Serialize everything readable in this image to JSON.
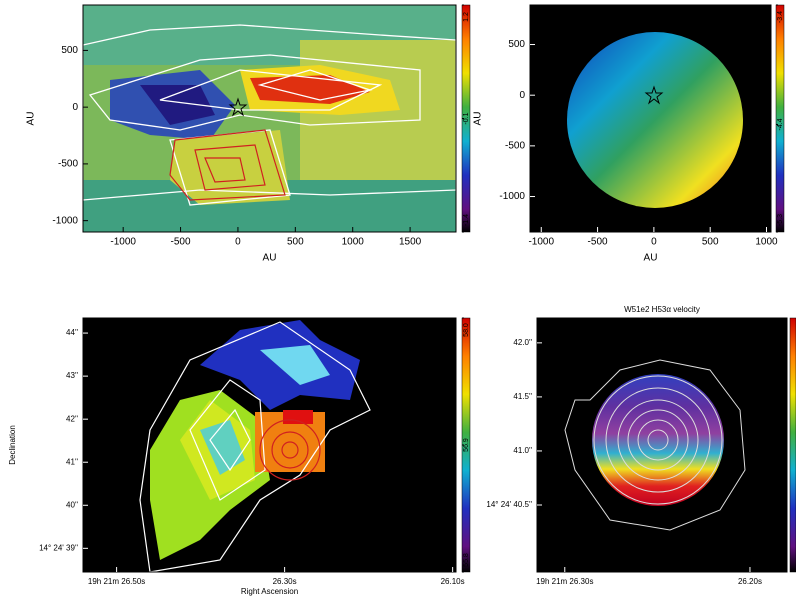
{
  "chart_data": [
    {
      "type": "image",
      "xlabel": "AU",
      "ylabel": "AU",
      "xlim": [
        -1350,
        1900
      ],
      "ylim": [
        -1100,
        900
      ],
      "xticks": [
        -1000,
        -500,
        0,
        500,
        1000,
        1500
      ],
      "yticks": [
        -1000,
        -500,
        0,
        500
      ],
      "zlim": [
        -1.4,
        1.2
      ],
      "zticks": [
        -1.4,
        -0.1,
        1.2
      ]
    },
    {
      "type": "image",
      "xlabel": "AU",
      "ylabel": "AU",
      "xlim": [
        -1100,
        1040
      ],
      "ylim": [
        -1350,
        890
      ],
      "xticks": [
        -1000,
        -500,
        0,
        500,
        1000
      ],
      "yticks": [
        -1000,
        -500,
        0,
        500
      ],
      "zlim": [
        -5.3,
        -3.4
      ],
      "zticks": [
        -5.3,
        -4.4,
        -3.4
      ]
    },
    {
      "type": "image",
      "xlabel": "Right Ascension",
      "ylabel": "Declination",
      "xlim": [
        26.54,
        26.096
      ],
      "ylim": [
        38.45,
        44.35
      ],
      "xticks": [
        {
          "value": 26.5,
          "label": "19h 21m 26.50s"
        },
        {
          "value": 26.3,
          "label": "26.30s"
        },
        {
          "value": 26.1,
          "label": "26.10s"
        }
      ],
      "yticks": [
        {
          "value": 39,
          "label": "14° 24' 39''"
        },
        {
          "value": 40,
          "label": "40''"
        },
        {
          "value": 41,
          "label": "41''"
        },
        {
          "value": 42,
          "label": "42''"
        },
        {
          "value": 43,
          "label": "43''"
        },
        {
          "value": 44,
          "label": "44''"
        }
      ],
      "zlim": [
        55.8,
        58
      ],
      "zticks": [
        55.8,
        56.9,
        {
          "value": 58,
          "label": "58.0"
        }
      ]
    },
    {
      "type": "image",
      "title": "W51e2 H53α velocity",
      "xlim": [
        26.315,
        26.18
      ],
      "ylim": [
        39.88,
        42.23
      ],
      "xticks": [
        {
          "value": 26.3,
          "label": "19h 21m 26.30s"
        },
        {
          "value": 26.2,
          "label": "26.20s"
        }
      ],
      "yticks": [
        {
          "value": 40.5,
          "label": "14° 24' 40.5''"
        },
        {
          "value": 41,
          "label": "41.0''"
        },
        {
          "value": 41.5,
          "label": "41.5''"
        },
        {
          "value": 42,
          "label": "42.0''"
        }
      ]
    }
  ]
}
